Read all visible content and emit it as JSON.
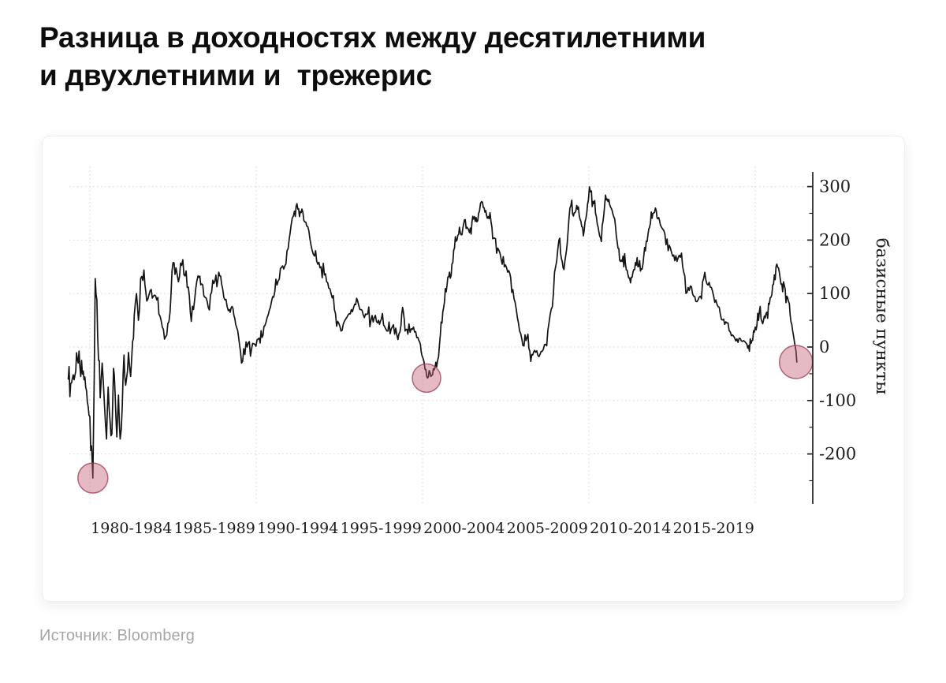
{
  "title": "Разница в доходностях между десятилетними\nи двухлетними и  трежерис",
  "source": {
    "label": "Источник:",
    "value": "Bloomberg"
  },
  "chart_data": {
    "type": "line",
    "title": "",
    "xlabel": "",
    "ylabel": "базисные пункты",
    "x_tick_labels": [
      "1980-1984",
      "1985-1989",
      "1990-1994",
      "1995-1999",
      "2000-2004",
      "2005-2009",
      "2010-2014",
      "2015-2019"
    ],
    "x_tick_centers": [
      1982.5,
      1987.5,
      1992.5,
      1997.5,
      2002.5,
      2007.5,
      2012.5,
      2017.5
    ],
    "y_ticks": [
      300,
      200,
      100,
      0,
      -100,
      -200
    ],
    "y_minor_ticks": [
      250,
      150,
      50,
      -50,
      -150,
      -250
    ],
    "xlim": [
      1978.4,
      2023.2
    ],
    "ylim": [
      -290,
      335
    ],
    "grid": {
      "style": "dotted",
      "h_values": [
        300,
        200,
        100,
        0,
        -100,
        -200
      ],
      "v_years": [
        1980,
        1990,
        2000,
        2010,
        2020
      ]
    },
    "line_color": "#141414",
    "grid_color": "#d6d6d6",
    "axis_color": "#222222",
    "text_color": "#1c1c1c",
    "highlight_fill": "#c45a72",
    "highlight_stroke": "#9e3a52",
    "highlight_circles": [
      {
        "year": 1980.18,
        "bp": -245,
        "radius_px": 19
      },
      {
        "year": 2000.24,
        "bp": -58,
        "radius_px": 18
      },
      {
        "year": 2022.45,
        "bp": -28,
        "radius_px": 21
      }
    ],
    "points": [
      [
        1978.7,
        -60
      ],
      [
        1978.85,
        -68
      ],
      [
        1979.0,
        -52
      ],
      [
        1979.15,
        -45
      ],
      [
        1979.3,
        -30
      ],
      [
        1979.45,
        -55
      ],
      [
        1979.6,
        -45
      ],
      [
        1979.75,
        -75
      ],
      [
        1979.9,
        -112
      ],
      [
        1980.0,
        -130
      ],
      [
        1980.1,
        -185
      ],
      [
        1980.18,
        -245
      ],
      [
        1980.26,
        -60
      ],
      [
        1980.32,
        128
      ],
      [
        1980.42,
        88
      ],
      [
        1980.52,
        -25
      ],
      [
        1980.62,
        -95
      ],
      [
        1980.74,
        -30
      ],
      [
        1980.87,
        -105
      ],
      [
        1981.0,
        -172
      ],
      [
        1981.1,
        -75
      ],
      [
        1981.22,
        -140
      ],
      [
        1981.32,
        -163
      ],
      [
        1981.42,
        -40
      ],
      [
        1981.52,
        -90
      ],
      [
        1981.62,
        -168
      ],
      [
        1981.72,
        -90
      ],
      [
        1981.82,
        -172
      ],
      [
        1981.95,
        -110
      ],
      [
        1982.05,
        -15
      ],
      [
        1982.2,
        -60
      ],
      [
        1982.32,
        -10
      ],
      [
        1982.45,
        -55
      ],
      [
        1982.57,
        10
      ],
      [
        1982.67,
        60
      ],
      [
        1982.8,
        100
      ],
      [
        1982.92,
        50
      ],
      [
        1983.05,
        128
      ],
      [
        1983.25,
        144
      ],
      [
        1983.42,
        86
      ],
      [
        1983.62,
        105
      ],
      [
        1983.82,
        95
      ],
      [
        1984.02,
        88
      ],
      [
        1984.22,
        58
      ],
      [
        1984.42,
        33
      ],
      [
        1984.62,
        22
      ],
      [
        1984.82,
        65
      ],
      [
        1985.0,
        158
      ],
      [
        1985.18,
        148
      ],
      [
        1985.32,
        122
      ],
      [
        1985.52,
        153
      ],
      [
        1985.72,
        133
      ],
      [
        1985.92,
        112
      ],
      [
        1986.1,
        48
      ],
      [
        1986.3,
        88
      ],
      [
        1986.5,
        133
      ],
      [
        1986.72,
        118
      ],
      [
        1986.92,
        93
      ],
      [
        1987.12,
        74
      ],
      [
        1987.32,
        103
      ],
      [
        1987.52,
        124
      ],
      [
        1987.75,
        140
      ],
      [
        1987.92,
        118
      ],
      [
        1988.12,
        88
      ],
      [
        1988.32,
        68
      ],
      [
        1988.55,
        76
      ],
      [
        1988.77,
        42
      ],
      [
        1989.0,
        4
      ],
      [
        1989.12,
        -30
      ],
      [
        1989.32,
        -14
      ],
      [
        1989.52,
        8
      ],
      [
        1989.72,
        -4
      ],
      [
        1989.92,
        5
      ],
      [
        1990.12,
        15
      ],
      [
        1990.35,
        18
      ],
      [
        1990.52,
        40
      ],
      [
        1990.72,
        60
      ],
      [
        1990.92,
        85
      ],
      [
        1991.12,
        104
      ],
      [
        1991.32,
        124
      ],
      [
        1991.52,
        149
      ],
      [
        1991.72,
        152
      ],
      [
        1991.92,
        184
      ],
      [
        1992.1,
        228
      ],
      [
        1992.3,
        254
      ],
      [
        1992.45,
        268
      ],
      [
        1992.6,
        244
      ],
      [
        1992.75,
        258
      ],
      [
        1992.92,
        234
      ],
      [
        1993.1,
        225
      ],
      [
        1993.3,
        190
      ],
      [
        1993.5,
        170
      ],
      [
        1993.7,
        155
      ],
      [
        1993.9,
        150
      ],
      [
        1994.1,
        135
      ],
      [
        1994.3,
        120
      ],
      [
        1994.5,
        100
      ],
      [
        1994.7,
        70
      ],
      [
        1994.9,
        48
      ],
      [
        1995.1,
        30
      ],
      [
        1995.3,
        48
      ],
      [
        1995.52,
        60
      ],
      [
        1995.72,
        70
      ],
      [
        1995.92,
        80
      ],
      [
        1996.1,
        86
      ],
      [
        1996.3,
        70
      ],
      [
        1996.5,
        55
      ],
      [
        1996.7,
        62
      ],
      [
        1996.9,
        50
      ],
      [
        1997.1,
        55
      ],
      [
        1997.3,
        45
      ],
      [
        1997.52,
        52
      ],
      [
        1997.72,
        38
      ],
      [
        1997.92,
        30
      ],
      [
        1998.12,
        34
      ],
      [
        1998.32,
        24
      ],
      [
        1998.52,
        14
      ],
      [
        1998.7,
        40
      ],
      [
        1998.8,
        74
      ],
      [
        1998.95,
        30
      ],
      [
        1999.12,
        24
      ],
      [
        1999.32,
        34
      ],
      [
        1999.52,
        28
      ],
      [
        1999.72,
        18
      ],
      [
        1999.87,
        5
      ],
      [
        2000.02,
        -20
      ],
      [
        2000.15,
        -42
      ],
      [
        2000.3,
        -58
      ],
      [
        2000.45,
        -48
      ],
      [
        2000.6,
        -52
      ],
      [
        2000.75,
        -38
      ],
      [
        2000.9,
        -26
      ],
      [
        2001.02,
        5
      ],
      [
        2001.17,
        45
      ],
      [
        2001.32,
        85
      ],
      [
        2001.47,
        115
      ],
      [
        2001.62,
        140
      ],
      [
        2001.77,
        155
      ],
      [
        2001.92,
        185
      ],
      [
        2002.07,
        200
      ],
      [
        2002.22,
        224
      ],
      [
        2002.37,
        210
      ],
      [
        2002.52,
        238
      ],
      [
        2002.67,
        224
      ],
      [
        2002.82,
        214
      ],
      [
        2002.97,
        234
      ],
      [
        2003.12,
        244
      ],
      [
        2003.27,
        234
      ],
      [
        2003.42,
        254
      ],
      [
        2003.55,
        272
      ],
      [
        2003.7,
        260
      ],
      [
        2003.85,
        246
      ],
      [
        2004.0,
        240
      ],
      [
        2004.17,
        224
      ],
      [
        2004.32,
        204
      ],
      [
        2004.52,
        185
      ],
      [
        2004.72,
        165
      ],
      [
        2004.92,
        150
      ],
      [
        2005.12,
        140
      ],
      [
        2005.3,
        130
      ],
      [
        2005.5,
        90
      ],
      [
        2005.7,
        55
      ],
      [
        2005.9,
        25
      ],
      [
        2006.1,
        2
      ],
      [
        2006.28,
        18
      ],
      [
        2006.45,
        -8
      ],
      [
        2006.62,
        -15
      ],
      [
        2006.8,
        -10
      ],
      [
        2007.0,
        -18
      ],
      [
        2007.2,
        -8
      ],
      [
        2007.4,
        5
      ],
      [
        2007.6,
        45
      ],
      [
        2007.8,
        75
      ],
      [
        2008.0,
        150
      ],
      [
        2008.2,
        200
      ],
      [
        2008.35,
        165
      ],
      [
        2008.5,
        145
      ],
      [
        2008.65,
        180
      ],
      [
        2008.8,
        240
      ],
      [
        2008.92,
        265
      ],
      [
        2009.07,
        245
      ],
      [
        2009.22,
        255
      ],
      [
        2009.37,
        262
      ],
      [
        2009.52,
        235
      ],
      [
        2009.67,
        208
      ],
      [
        2009.82,
        240
      ],
      [
        2009.97,
        275
      ],
      [
        2010.1,
        290
      ],
      [
        2010.25,
        272
      ],
      [
        2010.4,
        250
      ],
      [
        2010.55,
        225
      ],
      [
        2010.7,
        204
      ],
      [
        2010.85,
        235
      ],
      [
        2011.0,
        284
      ],
      [
        2011.15,
        272
      ],
      [
        2011.3,
        262
      ],
      [
        2011.45,
        248
      ],
      [
        2011.6,
        225
      ],
      [
        2011.75,
        185
      ],
      [
        2011.9,
        160
      ],
      [
        2012.05,
        170
      ],
      [
        2012.2,
        155
      ],
      [
        2012.35,
        135
      ],
      [
        2012.5,
        120
      ],
      [
        2012.65,
        140
      ],
      [
        2012.8,
        158
      ],
      [
        2012.95,
        150
      ],
      [
        2013.1,
        142
      ],
      [
        2013.25,
        155
      ],
      [
        2013.4,
        180
      ],
      [
        2013.55,
        210
      ],
      [
        2013.7,
        232
      ],
      [
        2013.85,
        250
      ],
      [
        2014.0,
        260
      ],
      [
        2014.15,
        240
      ],
      [
        2014.3,
        228
      ],
      [
        2014.5,
        218
      ],
      [
        2014.7,
        202
      ],
      [
        2014.9,
        185
      ],
      [
        2015.1,
        172
      ],
      [
        2015.3,
        160
      ],
      [
        2015.5,
        168
      ],
      [
        2015.7,
        140
      ],
      [
        2015.9,
        102
      ],
      [
        2016.1,
        114
      ],
      [
        2016.3,
        95
      ],
      [
        2016.5,
        85
      ],
      [
        2016.7,
        95
      ],
      [
        2016.9,
        128
      ],
      [
        2017.1,
        118
      ],
      [
        2017.3,
        112
      ],
      [
        2017.5,
        95
      ],
      [
        2017.7,
        80
      ],
      [
        2017.9,
        62
      ],
      [
        2018.1,
        52
      ],
      [
        2018.3,
        45
      ],
      [
        2018.5,
        28
      ],
      [
        2018.7,
        20
      ],
      [
        2018.9,
        15
      ],
      [
        2019.1,
        16
      ],
      [
        2019.3,
        12
      ],
      [
        2019.5,
        5
      ],
      [
        2019.65,
        -8
      ],
      [
        2019.8,
        12
      ],
      [
        2019.95,
        28
      ],
      [
        2020.1,
        40
      ],
      [
        2020.25,
        66
      ],
      [
        2020.4,
        48
      ],
      [
        2020.55,
        58
      ],
      [
        2020.7,
        65
      ],
      [
        2020.85,
        80
      ],
      [
        2021.0,
        98
      ],
      [
        2021.15,
        135
      ],
      [
        2021.3,
        155
      ],
      [
        2021.4,
        148
      ],
      [
        2021.5,
        128
      ],
      [
        2021.6,
        118
      ],
      [
        2021.7,
        122
      ],
      [
        2021.8,
        108
      ],
      [
        2021.9,
        95
      ],
      [
        2022.0,
        85
      ],
      [
        2022.1,
        60
      ],
      [
        2022.2,
        42
      ],
      [
        2022.3,
        22
      ],
      [
        2022.4,
        2
      ],
      [
        2022.5,
        -28
      ]
    ]
  }
}
